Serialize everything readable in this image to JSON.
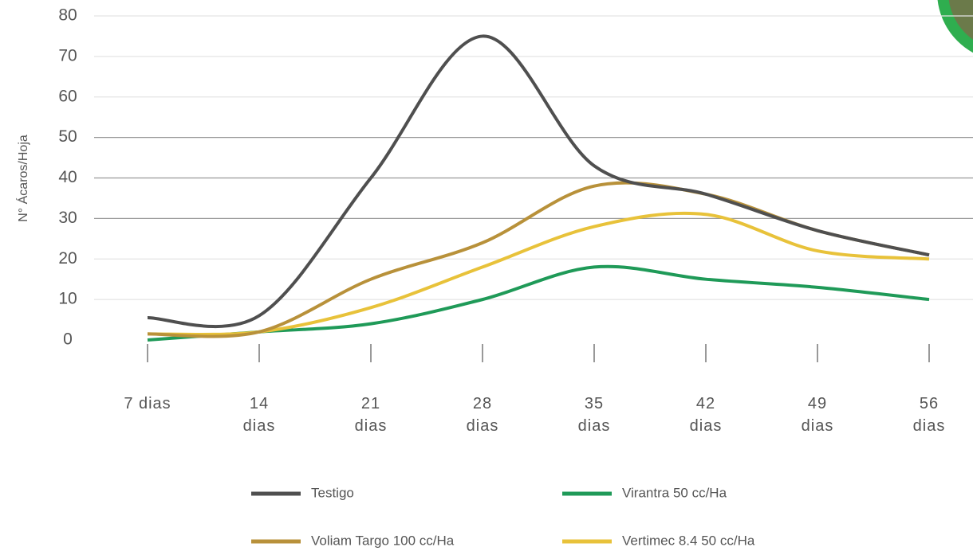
{
  "chart_data": {
    "type": "line",
    "y_label": "N° Ácaros/Hoja",
    "categories": [
      "7 dias",
      "14 dias",
      "21 dias",
      "28 dias",
      "35 dias",
      "42 dias",
      "49 dias",
      "56 dias"
    ],
    "series": [
      {
        "name": "Testigo",
        "color": "#4f4f4f",
        "values": [
          5.5,
          6,
          40,
          75,
          43,
          36,
          27,
          21
        ]
      },
      {
        "name": "Virantra 50 cc/Ha",
        "color": "#1f9a58",
        "values": [
          0,
          2,
          4,
          10,
          18,
          15,
          13,
          10
        ]
      },
      {
        "name": "Voliam Targo 100 cc/Ha",
        "color": "#b8913a",
        "values": [
          1.5,
          2,
          15,
          24,
          38,
          36,
          27,
          21
        ]
      },
      {
        "name": "Vertimec 8.4 50 cc/Ha",
        "color": "#e8c23a",
        "values": [
          1.5,
          2,
          8,
          18,
          28,
          31,
          22,
          20
        ]
      }
    ],
    "ylim": [
      0,
      80
    ],
    "yticks": [
      0,
      10,
      20,
      30,
      40,
      50,
      60,
      70,
      80
    ],
    "grid": true
  }
}
